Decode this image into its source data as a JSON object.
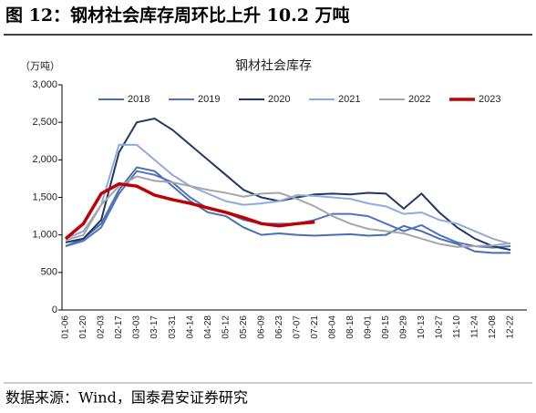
{
  "header": "图 12：钢材社会库存周环比上升 10.2 万吨",
  "source": "数据来源：Wind，国泰君安证券研究",
  "chart_data": {
    "type": "line",
    "title": "钢材社会库存",
    "y_label": "（万吨）",
    "categories": [
      "01-06",
      "01-20",
      "02-03",
      "02-17",
      "03-03",
      "03-17",
      "03-31",
      "04-14",
      "04-28",
      "05-12",
      "05-26",
      "06-09",
      "06-23",
      "07-07",
      "07-21",
      "08-04",
      "08-18",
      "09-01",
      "09-15",
      "09-29",
      "10-13",
      "10-27",
      "11-10",
      "11-24",
      "12-08",
      "12-22"
    ],
    "series": [
      {
        "name": "2018",
        "color": "#4a6fb0",
        "width": 2,
        "values": [
          850,
          950,
          1150,
          1600,
          1900,
          1850,
          1650,
          1450,
          1300,
          1250,
          1100,
          1000,
          1020,
          1000,
          990,
          1000,
          1010,
          990,
          1000,
          1120,
          1050,
          950,
          880,
          780,
          760,
          760
        ]
      },
      {
        "name": "2019",
        "color": "#4f73c2",
        "width": 2,
        "values": [
          850,
          920,
          1100,
          1550,
          1850,
          1800,
          1700,
          1500,
          1350,
          1300,
          1200,
          1150,
          1150,
          1150,
          1200,
          1280,
          1280,
          1250,
          1150,
          1050,
          1130,
          1000,
          900,
          850,
          830,
          850
        ]
      },
      {
        "name": "2020",
        "color": "#1f3864",
        "width": 2,
        "values": [
          900,
          950,
          1200,
          2100,
          2500,
          2550,
          2400,
          2200,
          2000,
          1800,
          1600,
          1500,
          1450,
          1500,
          1540,
          1550,
          1540,
          1560,
          1550,
          1350,
          1550,
          1300,
          1100,
          950,
          850,
          800
        ]
      },
      {
        "name": "2021",
        "color": "#8faadc",
        "width": 2,
        "values": [
          950,
          1050,
          1400,
          2200,
          2200,
          2000,
          1800,
          1650,
          1550,
          1450,
          1400,
          1420,
          1450,
          1530,
          1520,
          1500,
          1480,
          1420,
          1380,
          1280,
          1300,
          1200,
          1150,
          1050,
          950,
          880
        ]
      },
      {
        "name": "2022",
        "color": "#a6a6a6",
        "width": 2,
        "values": [
          930,
          1000,
          1400,
          1650,
          1780,
          1720,
          1700,
          1650,
          1600,
          1560,
          1510,
          1550,
          1560,
          1480,
          1380,
          1250,
          1150,
          1080,
          1050,
          1020,
          950,
          880,
          840,
          850,
          860,
          890
        ]
      },
      {
        "name": "2023",
        "color": "#c00000",
        "width": 3.5,
        "values": [
          950,
          1150,
          1550,
          1680,
          1650,
          1530,
          1470,
          1420,
          1360,
          1300,
          1230,
          1150,
          1120,
          1150,
          1170,
          null,
          null,
          null,
          null,
          null,
          null,
          null,
          null,
          null,
          null,
          null
        ]
      }
    ],
    "ylim": [
      0,
      3000
    ],
    "yticks": [
      0,
      500,
      {
        "value": 1000,
        "label": "1,000"
      },
      {
        "value": 1500,
        "label": "1,500"
      },
      {
        "value": 2000,
        "label": "2,000"
      },
      {
        "value": 2500,
        "label": "2,500"
      },
      {
        "value": 3000,
        "label": "3,000"
      }
    ]
  }
}
